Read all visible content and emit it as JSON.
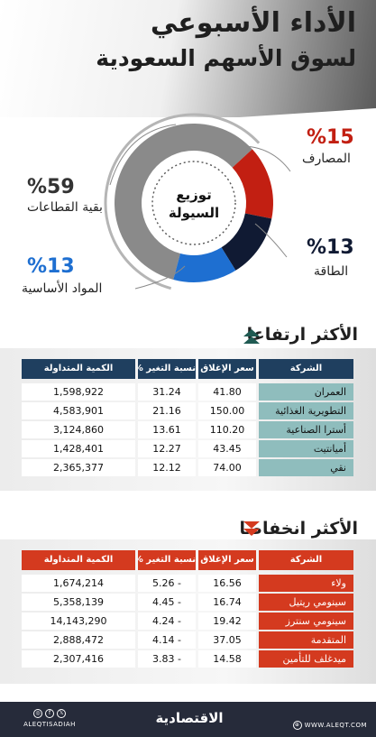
{
  "header": {
    "title_line1": "الأداء الأسبوعي",
    "title_line2": "لسوق الأسهم السعودية"
  },
  "chart_data": [
    {
      "type": "pie",
      "title": "توزيع السيولة",
      "slices": [
        {
          "label": "بقية القطاعات",
          "value": 59,
          "display": "%59",
          "color": "#8a8a8a"
        },
        {
          "label": "المصارف",
          "value": 15,
          "display": "%15",
          "color": "#c21f12"
        },
        {
          "label": "الطاقة",
          "value": 13,
          "display": "%13",
          "color": "#101a33"
        },
        {
          "label": "المواد الأساسية",
          "value": 13,
          "display": "%13",
          "color": "#1e6fd1"
        }
      ]
    },
    {
      "type": "table",
      "title": "الأكثر ارتفاعا",
      "columns": [
        "الشركة",
        "سعر الإغلاق",
        "نسبة التغير %",
        "الكمية المتداولة"
      ],
      "header_color": "#1f3f5f",
      "rows": [
        {
          "company": "العمران",
          "close": "41.80",
          "change": "31.24",
          "volume": "1,598,922"
        },
        {
          "company": "التطويرية الغذائية",
          "close": "150.00",
          "change": "21.16",
          "volume": "4,583,901"
        },
        {
          "company": "أسترا الصناعية",
          "close": "110.20",
          "change": "13.61",
          "volume": "3,124,860"
        },
        {
          "company": "أميانتيت",
          "close": "43.45",
          "change": "12.27",
          "volume": "1,428,401"
        },
        {
          "company": "نقي",
          "close": "74.00",
          "change": "12.12",
          "volume": "2,365,377"
        }
      ]
    },
    {
      "type": "table",
      "title": "الأكثر انخفاضا",
      "columns": [
        "الشركة",
        "سعر الإغلاق",
        "نسبة التغير %",
        "الكمية المتداولة"
      ],
      "header_color": "#d43a1f",
      "rows": [
        {
          "company": "ولاء",
          "close": "16.56",
          "change": "5.26 -",
          "volume": "1,674,214"
        },
        {
          "company": "سينومي ريتيل",
          "close": "16.74",
          "change": "4.45 -",
          "volume": "5,358,139"
        },
        {
          "company": "سينومي سنترز",
          "close": "19.42",
          "change": "4.24 -",
          "volume": "14,143,290"
        },
        {
          "company": "المتقدمة",
          "close": "37.05",
          "change": "4.14 -",
          "volume": "2,888,472"
        },
        {
          "company": "ميدغلف للتأمين",
          "close": "14.58",
          "change": "3.83 -",
          "volume": "2,307,416"
        }
      ]
    }
  ],
  "footer": {
    "handle": "ALEQTISADIAH",
    "logo": "الاقتصادية",
    "site": "WWW.ALEQT.COM",
    "social_icons": [
      "instagram-icon",
      "facebook-icon",
      "x-icon"
    ]
  },
  "colors": {
    "gainers_header": "#1f3f5f",
    "gainers_name_cell": "#8fbdbd",
    "losers_header": "#d43a1f",
    "losers_name_cell": "#d43a1f",
    "footer_bg": "#262b3a"
  }
}
